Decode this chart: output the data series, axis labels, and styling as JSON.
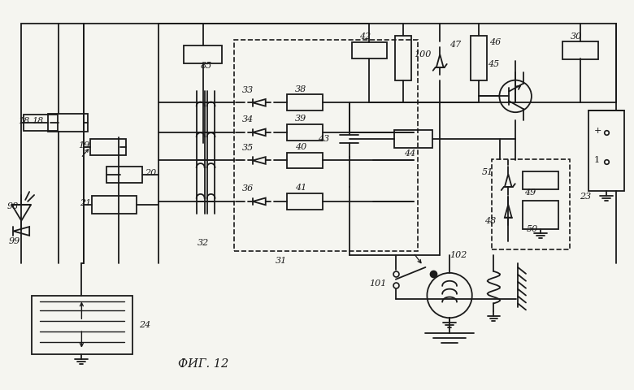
{
  "title": "ФИГ. 12",
  "bg_color": "#f5f5f0",
  "line_color": "#1a1a1a",
  "fig_width": 7.8,
  "fig_height": 4.8,
  "dpi": 100
}
